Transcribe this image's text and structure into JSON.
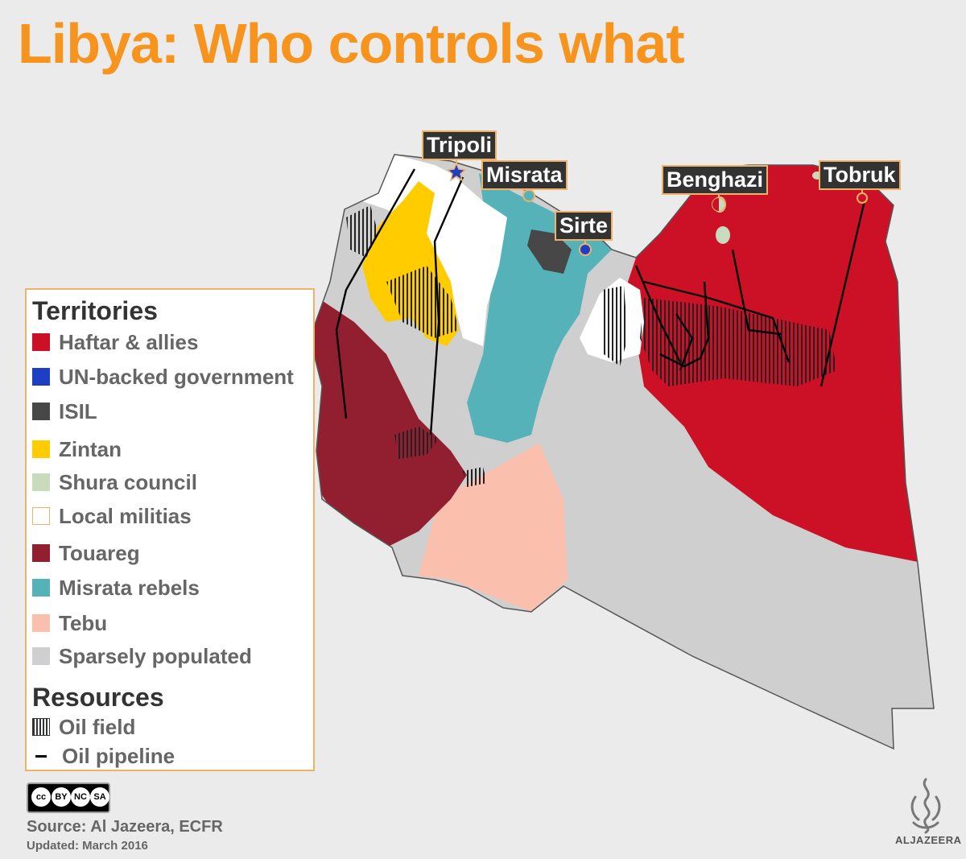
{
  "title": "Libya: Who controls what",
  "legend": {
    "territories_heading": "Territories",
    "territories": [
      {
        "label": "Haftar & allies",
        "color": "#cc1126"
      },
      {
        "label": "UN-backed government",
        "color": "#1d3fc4"
      },
      {
        "label": "ISIL",
        "color": "#474747"
      },
      {
        "label": "Zintan",
        "color": "#ffcc00"
      },
      {
        "label": "Shura council",
        "color": "#c8dcbd"
      },
      {
        "label": "Local militias",
        "color": "#ffffff"
      },
      {
        "label": "Touareg",
        "color": "#911f2f"
      },
      {
        "label": "Misrata rebels",
        "color": "#55b2b9"
      },
      {
        "label": "Tebu",
        "color": "#fbbfae"
      },
      {
        "label": "Sparsely populated",
        "color": "#d0cfcf"
      }
    ],
    "resources_heading": "Resources",
    "resources": [
      {
        "label": "Oil field",
        "icon": "hatch"
      },
      {
        "label": "Oil pipeline",
        "icon": "line"
      }
    ]
  },
  "cities": [
    {
      "name": "Tripoli",
      "marker": "star",
      "color": "#1d3fc4"
    },
    {
      "name": "Misrata",
      "marker": "ring",
      "color": "#55b2b9"
    },
    {
      "name": "Sirte",
      "marker": "dot",
      "color": "#1d3fc4"
    },
    {
      "name": "Benghazi",
      "marker": "split",
      "color": "#cc1126"
    },
    {
      "name": "Tobruk",
      "marker": "dot",
      "color": "#cc1126"
    }
  ],
  "license": {
    "badges": [
      "cc",
      "BY",
      "NC",
      "SA"
    ]
  },
  "source": "Source: Al Jazeera, ECFR",
  "updated": "Updated: March 2016",
  "logo": {
    "text": "ALJAZEERA",
    "icon": "al-jazeera-calligraphy-logo"
  },
  "colors": {
    "title": "#f7941e",
    "accent_border": "#f0b26a"
  }
}
